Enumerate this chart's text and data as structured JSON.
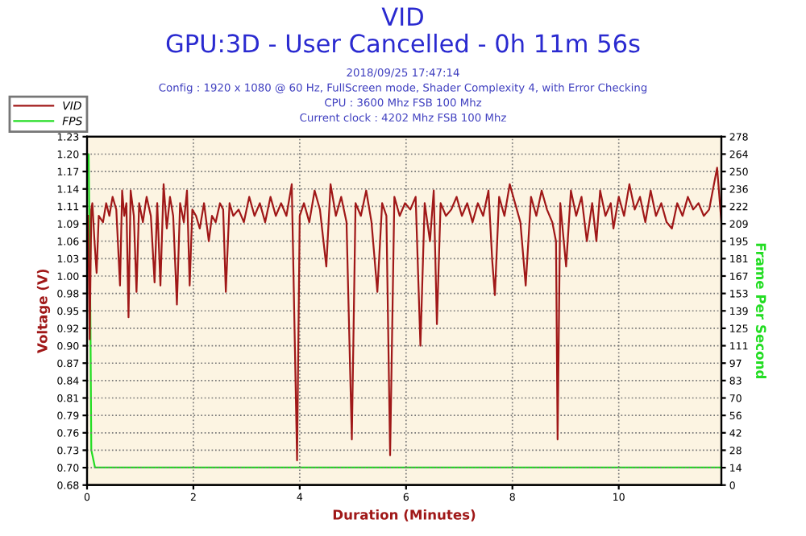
{
  "chart_data": {
    "type": "line",
    "title": "VID",
    "subtitle": "GPU:3D - User Cancelled - 0h 11m 56s",
    "annotations": [
      "2018/09/25 17:47:14",
      "Config : 1920 x 1080 @ 60 Hz, FullScreen mode, Shader Complexity 4, with Error Checking",
      "CPU : 3600 Mhz FSB 100 Mhz",
      "Current clock : 4202 Mhz FSB 100 Mhz"
    ],
    "xlabel": "Duration (Minutes)",
    "ylabel": "Voltage (V)",
    "y2label": "Frame Per Second",
    "xlim": [
      0,
      11.93
    ],
    "xticks": [
      0,
      2,
      4,
      6,
      8,
      10
    ],
    "ylim": [
      0.675,
      1.225
    ],
    "yticks": [
      {
        "value": 0.675,
        "label": "0.68"
      },
      {
        "value": 0.7025,
        "label": "0.70"
      },
      {
        "value": 0.73,
        "label": "0.73"
      },
      {
        "value": 0.7575,
        "label": "0.76"
      },
      {
        "value": 0.785,
        "label": "0.79"
      },
      {
        "value": 0.8125,
        "label": "0.81"
      },
      {
        "value": 0.84,
        "label": "0.84"
      },
      {
        "value": 0.8675,
        "label": "0.87"
      },
      {
        "value": 0.895,
        "label": "0.90"
      },
      {
        "value": 0.9225,
        "label": "0.92"
      },
      {
        "value": 0.95,
        "label": "0.95"
      },
      {
        "value": 0.9775,
        "label": "0.98"
      },
      {
        "value": 1.005,
        "label": "1.00"
      },
      {
        "value": 1.0325,
        "label": "1.03"
      },
      {
        "value": 1.06,
        "label": "1.06"
      },
      {
        "value": 1.0875,
        "label": "1.09"
      },
      {
        "value": 1.115,
        "label": "1.11"
      },
      {
        "value": 1.1425,
        "label": "1.14"
      },
      {
        "value": 1.17,
        "label": "1.17"
      },
      {
        "value": 1.1975,
        "label": "1.20"
      },
      {
        "value": 1.225,
        "label": "1.23"
      }
    ],
    "y2lim": [
      0,
      278
    ],
    "y2ticks": [
      0,
      {
        "value": 13.9,
        "label": "14"
      },
      {
        "value": 27.8,
        "label": "28"
      },
      {
        "value": 41.7,
        "label": "42"
      },
      {
        "value": 55.6,
        "label": "56"
      },
      {
        "value": 69.5,
        "label": "70"
      },
      {
        "value": 83.4,
        "label": "83"
      },
      {
        "value": 97.3,
        "label": "97"
      },
      {
        "value": 111.2,
        "label": "111"
      },
      {
        "value": 125.1,
        "label": "125"
      },
      139,
      {
        "value": 152.9,
        "label": "153"
      },
      {
        "value": 166.8,
        "label": "167"
      },
      {
        "value": 180.7,
        "label": "181"
      },
      {
        "value": 194.6,
        "label": "195"
      },
      {
        "value": 208.5,
        "label": "209"
      },
      {
        "value": 222.4,
        "label": "222"
      },
      {
        "value": 236.3,
        "label": "236"
      },
      {
        "value": 250.2,
        "label": "250"
      },
      {
        "value": 264.1,
        "label": "264"
      },
      278
    ],
    "grid": true,
    "legend": "top left",
    "marker": "none",
    "line_style": "solid",
    "series": [
      {
        "name": "VID",
        "color": "#a01818",
        "x": [
          0.02,
          0.05,
          0.08,
          0.1,
          0.14,
          0.18,
          0.22,
          0.3,
          0.36,
          0.42,
          0.48,
          0.55,
          0.62,
          0.66,
          0.7,
          0.74,
          0.78,
          0.82,
          0.88,
          0.93,
          0.98,
          1.05,
          1.12,
          1.2,
          1.27,
          1.32,
          1.38,
          1.44,
          1.5,
          1.56,
          1.62,
          1.69,
          1.75,
          1.82,
          1.88,
          1.93,
          1.98,
          2.05,
          2.12,
          2.2,
          2.29,
          2.35,
          2.42,
          2.5,
          2.56,
          2.61,
          2.68,
          2.75,
          2.85,
          2.95,
          3.05,
          3.15,
          3.25,
          3.35,
          3.45,
          3.55,
          3.65,
          3.75,
          3.85,
          3.95,
          4.0,
          4.08,
          4.18,
          4.28,
          4.38,
          4.5,
          4.58,
          4.68,
          4.78,
          4.88,
          4.98,
          5.05,
          5.15,
          5.25,
          5.35,
          5.46,
          5.55,
          5.63,
          5.7,
          5.78,
          5.88,
          5.98,
          6.08,
          6.18,
          6.27,
          6.35,
          6.45,
          6.52,
          6.58,
          6.65,
          6.75,
          6.85,
          6.95,
          7.05,
          7.15,
          7.25,
          7.35,
          7.45,
          7.55,
          7.62,
          7.67,
          7.75,
          7.85,
          7.95,
          8.05,
          8.15,
          8.25,
          8.35,
          8.45,
          8.55,
          8.65,
          8.75,
          8.82,
          8.85,
          8.9,
          9.01,
          9.1,
          9.2,
          9.3,
          9.4,
          9.5,
          9.58,
          9.65,
          9.75,
          9.85,
          9.9,
          10.0,
          10.1,
          10.2,
          10.3,
          10.4,
          10.5,
          10.6,
          10.7,
          10.8,
          10.9,
          11.0,
          11.1,
          11.2,
          11.3,
          11.4,
          11.5,
          11.6,
          11.7,
          11.85,
          11.93
        ],
        "values": [
          1.1,
          0.905,
          1.11,
          1.12,
          1.06,
          1.01,
          1.1,
          1.09,
          1.12,
          1.1,
          1.13,
          1.11,
          0.99,
          1.14,
          1.1,
          1.12,
          0.94,
          1.14,
          1.1,
          0.98,
          1.12,
          1.09,
          1.13,
          1.1,
          0.995,
          1.12,
          0.99,
          1.15,
          1.08,
          1.13,
          1.1,
          0.96,
          1.12,
          1.09,
          1.14,
          0.99,
          1.11,
          1.1,
          1.08,
          1.12,
          1.06,
          1.1,
          1.09,
          1.12,
          1.11,
          0.98,
          1.12,
          1.1,
          1.11,
          1.09,
          1.13,
          1.1,
          1.12,
          1.09,
          1.13,
          1.1,
          1.12,
          1.1,
          1.15,
          0.714,
          1.1,
          1.12,
          1.09,
          1.14,
          1.11,
          1.02,
          1.15,
          1.1,
          1.13,
          1.09,
          0.747,
          1.12,
          1.1,
          1.14,
          1.09,
          0.98,
          1.12,
          1.1,
          0.722,
          1.13,
          1.1,
          1.12,
          1.11,
          1.13,
          0.895,
          1.12,
          1.06,
          1.14,
          0.929,
          1.12,
          1.1,
          1.11,
          1.13,
          1.1,
          1.12,
          1.09,
          1.12,
          1.1,
          1.14,
          1.03,
          0.975,
          1.13,
          1.1,
          1.15,
          1.12,
          1.09,
          0.99,
          1.13,
          1.1,
          1.14,
          1.11,
          1.09,
          1.06,
          0.747,
          1.12,
          1.02,
          1.14,
          1.1,
          1.13,
          1.06,
          1.12,
          1.06,
          1.14,
          1.1,
          1.12,
          1.08,
          1.13,
          1.1,
          1.15,
          1.11,
          1.13,
          1.09,
          1.14,
          1.1,
          1.12,
          1.09,
          1.08,
          1.12,
          1.1,
          1.13,
          1.11,
          1.12,
          1.1,
          1.11,
          1.176,
          1.09
        ]
      },
      {
        "name": "FPS",
        "color": "#22dd22",
        "axis": "y2",
        "x": [
          0.0,
          0.03,
          0.06,
          0.08,
          0.15,
          11.93
        ],
        "values": [
          264,
          264,
          150,
          28,
          14,
          14
        ]
      }
    ]
  }
}
